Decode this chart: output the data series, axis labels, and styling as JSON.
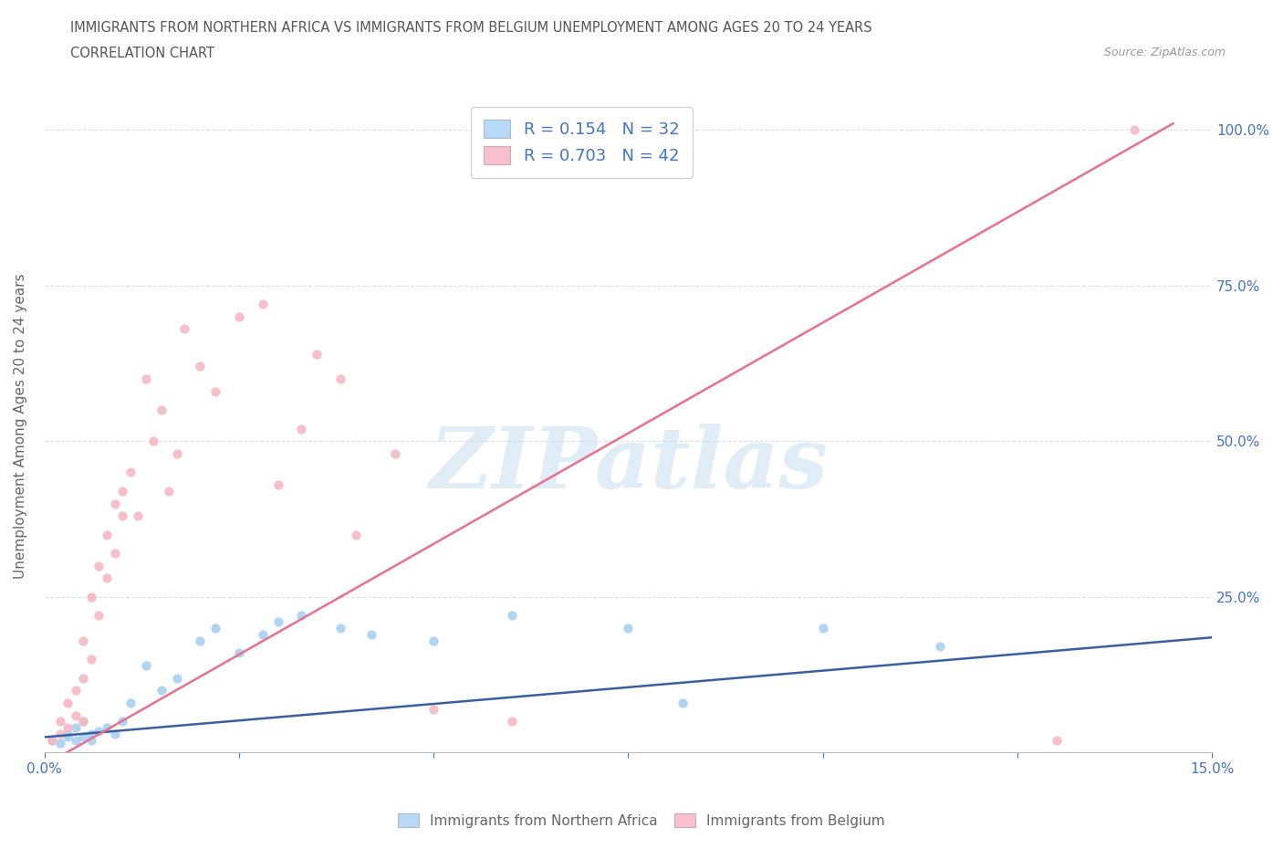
{
  "title_line1": "IMMIGRANTS FROM NORTHERN AFRICA VS IMMIGRANTS FROM BELGIUM UNEMPLOYMENT AMONG AGES 20 TO 24 YEARS",
  "title_line2": "CORRELATION CHART",
  "source_text": "Source: ZipAtlas.com",
  "ylabel": "Unemployment Among Ages 20 to 24 years",
  "xlim": [
    0.0,
    0.15
  ],
  "ylim": [
    0.0,
    1.05
  ],
  "xtick_positions": [
    0.0,
    0.025,
    0.05,
    0.075,
    0.1,
    0.125,
    0.15
  ],
  "xticklabels": [
    "0.0%",
    "",
    "",
    "",
    "",
    "",
    "15.0%"
  ],
  "ytick_positions": [
    0.0,
    0.25,
    0.5,
    0.75,
    1.0
  ],
  "yticklabels_right": [
    "",
    "25.0%",
    "50.0%",
    "75.0%",
    "100.0%"
  ],
  "blue_x": [
    0.001,
    0.002,
    0.003,
    0.003,
    0.004,
    0.004,
    0.005,
    0.005,
    0.006,
    0.006,
    0.007,
    0.008,
    0.009,
    0.01,
    0.011,
    0.013,
    0.015,
    0.017,
    0.02,
    0.022,
    0.025,
    0.028,
    0.03,
    0.033,
    0.038,
    0.042,
    0.05,
    0.06,
    0.075,
    0.082,
    0.1,
    0.115
  ],
  "blue_y": [
    0.02,
    0.015,
    0.03,
    0.025,
    0.02,
    0.04,
    0.05,
    0.025,
    0.03,
    0.02,
    0.035,
    0.04,
    0.03,
    0.05,
    0.08,
    0.14,
    0.1,
    0.12,
    0.18,
    0.2,
    0.16,
    0.19,
    0.21,
    0.22,
    0.2,
    0.19,
    0.18,
    0.22,
    0.2,
    0.08,
    0.2,
    0.17
  ],
  "pink_x": [
    0.001,
    0.002,
    0.002,
    0.003,
    0.003,
    0.004,
    0.004,
    0.005,
    0.005,
    0.005,
    0.006,
    0.006,
    0.007,
    0.007,
    0.008,
    0.008,
    0.009,
    0.009,
    0.01,
    0.01,
    0.011,
    0.012,
    0.013,
    0.014,
    0.015,
    0.016,
    0.017,
    0.018,
    0.02,
    0.022,
    0.025,
    0.028,
    0.03,
    0.033,
    0.035,
    0.038,
    0.04,
    0.045,
    0.05,
    0.06,
    0.13,
    0.14
  ],
  "pink_y": [
    0.02,
    0.03,
    0.05,
    0.04,
    0.08,
    0.06,
    0.1,
    0.12,
    0.18,
    0.05,
    0.25,
    0.15,
    0.3,
    0.22,
    0.35,
    0.28,
    0.4,
    0.32,
    0.38,
    0.42,
    0.45,
    0.38,
    0.6,
    0.5,
    0.55,
    0.42,
    0.48,
    0.68,
    0.62,
    0.58,
    0.7,
    0.72,
    0.43,
    0.52,
    0.64,
    0.6,
    0.35,
    0.48,
    0.07,
    0.05,
    0.02,
    1.0
  ],
  "blue_line_x": [
    0.0,
    0.15
  ],
  "blue_line_y": [
    0.025,
    0.185
  ],
  "pink_line_x": [
    0.0,
    0.145
  ],
  "pink_line_y": [
    -0.02,
    1.01
  ],
  "blue_dot_color": "#A8D0F0",
  "pink_dot_color": "#F5B8C4",
  "blue_line_color": "#3A5FA0",
  "pink_line_color": "#E87090",
  "legend_blue_fill": "#B8D8F8",
  "legend_pink_fill": "#F8C0CC",
  "R_blue": 0.154,
  "N_blue": 32,
  "R_pink": 0.703,
  "N_pink": 42,
  "watermark_text": "ZIPatlas",
  "watermark_color": "#C8DDF0",
  "background_color": "#FFFFFF",
  "grid_color": "#DDDDDD",
  "title_color": "#555555",
  "ylabel_color": "#666666",
  "tick_color": "#4472C4",
  "source_color": "#999999"
}
